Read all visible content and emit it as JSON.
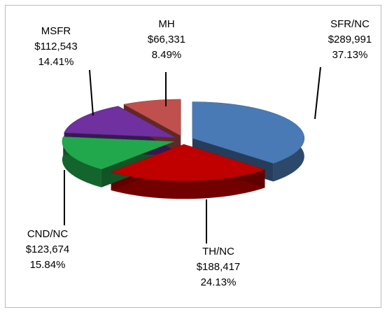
{
  "chart_data": {
    "type": "pie",
    "categories": [
      "SFR/NC",
      "TH/NC",
      "CND/NC",
      "MSFR",
      "MH"
    ],
    "values": [
      289991,
      188417,
      123674,
      112543,
      66331
    ],
    "value_labels": [
      "$289,991",
      "$188,417",
      "$123,674",
      "$112,543",
      "$66,331"
    ],
    "percents": [
      37.13,
      24.13,
      15.84,
      14.41,
      8.49
    ],
    "percent_labels": [
      "37.13%",
      "24.13%",
      "15.84%",
      "14.41%",
      "8.49%"
    ],
    "colors": [
      "#4a7ab5",
      "#c00000",
      "#22a84c",
      "#7030a0",
      "#c0504d"
    ]
  }
}
